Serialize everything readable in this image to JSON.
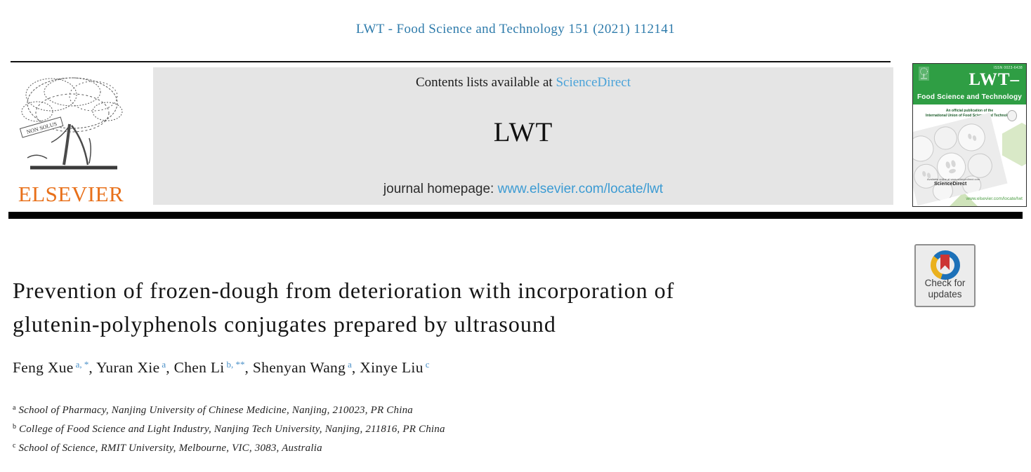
{
  "page": {
    "citation": "LWT - Food Science and Technology 151 (2021) 112141"
  },
  "masthead": {
    "contents_prefix": "Contents lists available at ",
    "sciencedirect_label": "ScienceDirect",
    "journal_title": "LWT",
    "homepage_prefix": "journal homepage: ",
    "homepage_url": "www.elsevier.com/locate/lwt",
    "elsevier_wordmark": "ELSEVIER",
    "elsevier_motto": "NON SOLUS"
  },
  "cover": {
    "issn": "ISSN 0023-6438",
    "title": "LWT–",
    "subtitle": "Food Science and Technology",
    "note_line1": "An official publication of the",
    "note_line2": "International Union of Food Science and Technology",
    "available_online": "Available online at www.sciencedirect.com",
    "sciencedirect_logo": "ScienceDirect",
    "homepage_url": "www.elsevier.com/locate/lwt"
  },
  "crossmark": {
    "line1": "Check for",
    "line2": "updates"
  },
  "article": {
    "title_lines": [
      "Prevention of frozen-dough from deterioration with incorporation of",
      "glutenin-polyphenols conjugates prepared by ultrasound"
    ],
    "authors": [
      {
        "name": "Feng Xue",
        "sup": "a, *"
      },
      {
        "name": "Yuran Xie",
        "sup": "a"
      },
      {
        "name": "Chen Li",
        "sup": "b, **"
      },
      {
        "name": "Shenyan Wang",
        "sup": "a"
      },
      {
        "name": "Xinye Liu",
        "sup": "c"
      }
    ],
    "affiliations": [
      {
        "sup": "a",
        "text": "School of Pharmacy, Nanjing University of Chinese Medicine, Nanjing, 210023, PR China"
      },
      {
        "sup": "b",
        "text": "College of Food Science and Light Industry, Nanjing Tech University, Nanjing, 211816, PR China"
      },
      {
        "sup": "c",
        "text": "School of Science, RMIT University, Melbourne, VIC, 3083, Australia"
      }
    ]
  },
  "colors": {
    "citation_blue": "#2e7bab",
    "sciencedirect_link_blue": "#4ba3d9",
    "homepage_link_blue": "#3c9bd3",
    "superscript_blue": "#4a90c8",
    "elsevier_orange": "#e8701a",
    "masthead_gray": "#e5e5e5",
    "cover_green": "#2f9e44",
    "cover_hexagon_green": "#d9e9c7",
    "crossmark_blue": "#1d71b8",
    "crossmark_yellow": "#eab11e",
    "crossmark_red": "#cc3533"
  }
}
